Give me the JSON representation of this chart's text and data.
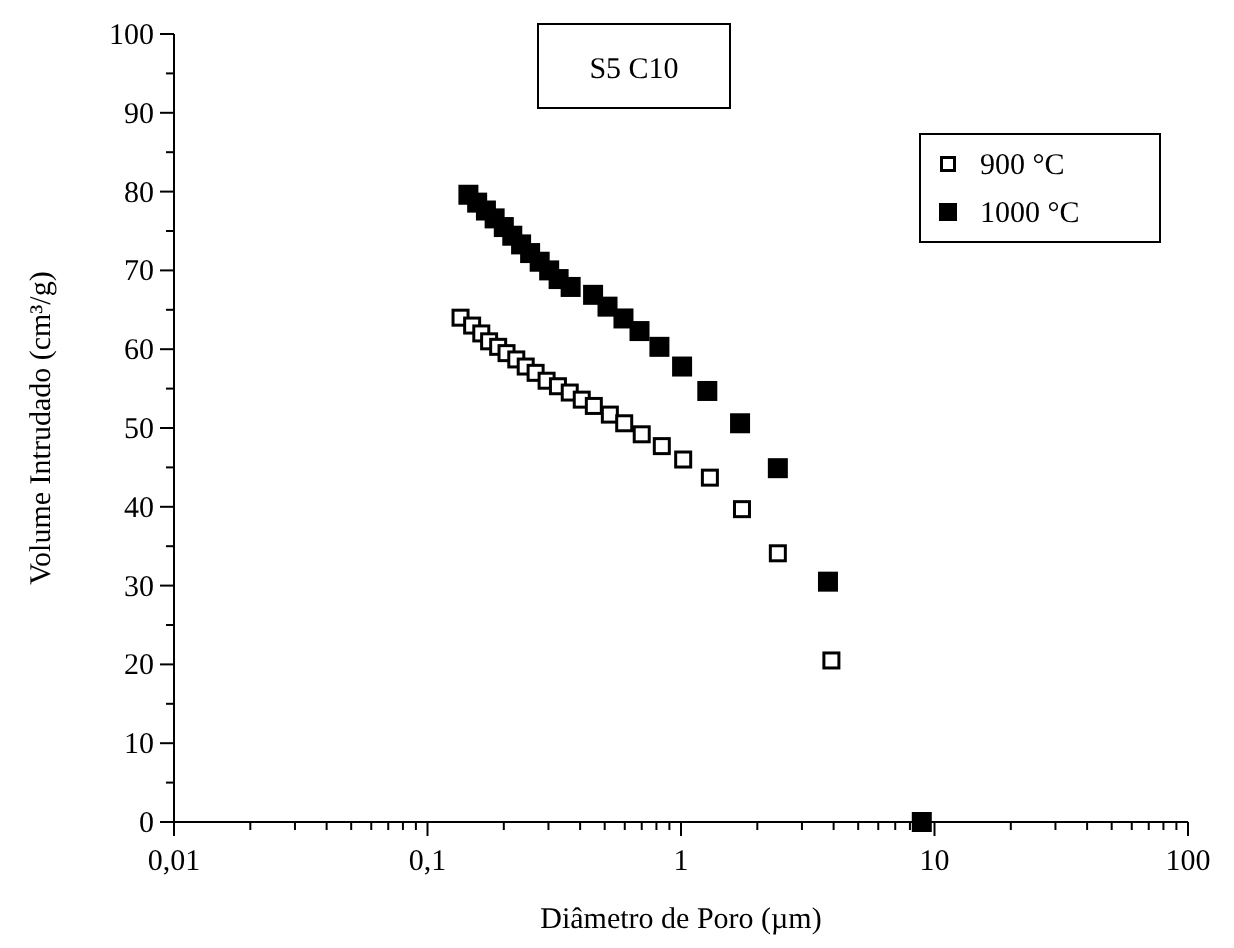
{
  "chart_data": {
    "type": "scatter",
    "xlabel": "Diâmetro de Poro (µm)",
    "ylabel": "Volume Intrudado (cm³/g)",
    "annotations": [
      "S5 C10"
    ],
    "log": "x",
    "xlim": [
      0.01,
      100
    ],
    "xticks": [
      {
        "value": 0.01,
        "label": "0,01"
      },
      {
        "value": 0.1,
        "label": "0,1"
      },
      1,
      10,
      100
    ],
    "ylim": [
      0,
      100
    ],
    "yticks": [
      0,
      {
        "value": 5,
        "label": null
      },
      10,
      {
        "value": 15,
        "label": null
      },
      20,
      {
        "value": 25,
        "label": null
      },
      30,
      {
        "value": 35,
        "label": null
      },
      40,
      {
        "value": 45,
        "label": null
      },
      50,
      {
        "value": 55,
        "label": null
      },
      60,
      {
        "value": 65,
        "label": null
      },
      70,
      {
        "value": 75,
        "label": null
      },
      80,
      {
        "value": 85,
        "label": null
      },
      90,
      {
        "value": 95,
        "label": null
      },
      100
    ],
    "grid": false,
    "legend": "top right",
    "series": [
      {
        "name": "900 °C",
        "color": "#000000",
        "marker": "square-open",
        "x": [
          0.135,
          0.15,
          0.163,
          0.175,
          0.19,
          0.205,
          0.224,
          0.244,
          0.267,
          0.295,
          0.327,
          0.364,
          0.406,
          0.453,
          0.524,
          0.597,
          0.7,
          0.84,
          1.02,
          1.3,
          1.74,
          2.41,
          3.92
        ],
        "values": [
          64,
          63,
          62,
          61,
          60.3,
          59.5,
          58.7,
          57.8,
          57,
          56,
          55.3,
          54.5,
          53.6,
          52.8,
          51.7,
          50.6,
          49.2,
          47.7,
          46,
          43.7,
          39.7,
          34.1,
          20.5
        ]
      },
      {
        "name": "1000 °C",
        "color": "#000000",
        "marker": "square",
        "x": [
          0.145,
          0.157,
          0.17,
          0.184,
          0.2,
          0.216,
          0.234,
          0.254,
          0.277,
          0.302,
          0.329,
          0.367,
          0.45,
          0.513,
          0.593,
          0.686,
          0.822,
          1.01,
          1.27,
          1.71,
          2.41,
          3.8,
          8.91
        ],
        "values": [
          79.6,
          78.6,
          77.6,
          76.6,
          75.5,
          74.4,
          73.3,
          72.2,
          71.1,
          70.0,
          68.9,
          67.9,
          66.9,
          65.4,
          63.9,
          62.3,
          60.3,
          57.8,
          54.7,
          50.6,
          44.9,
          30.5,
          0
        ]
      }
    ]
  }
}
